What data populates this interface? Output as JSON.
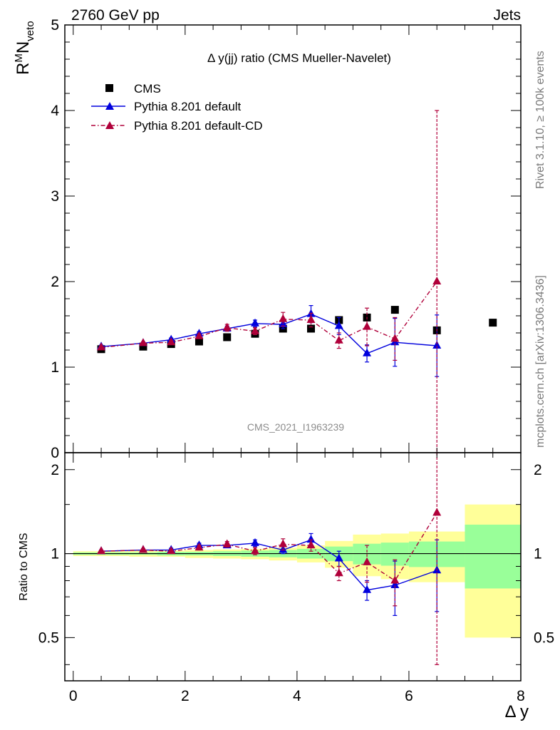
{
  "header": {
    "left": "2760 GeV pp",
    "right": "Jets"
  },
  "side_texts": {
    "rivet": "Rivet 3.1.10, ≥ 100k events",
    "mcplots": "mcplots.cern.ch [arXiv:1306.3436]"
  },
  "chart_data": {
    "type": "scatter",
    "title": "Δ y(jj) ratio (CMS Mueller-Navelet)",
    "watermark": "CMS_2021_I1963239",
    "xlabel": "Δ y",
    "ylabel": "R^M N_veto",
    "ylabel_main": "R",
    "ylabel_sup": "M",
    "ylabel_mid": "N",
    "ylabel_sub": "veto",
    "ratio_ylabel": "Ratio to CMS",
    "xlim": [
      -0.15,
      8.0
    ],
    "ylim": [
      0,
      5
    ],
    "ratio_ylim": [
      0.35,
      2.3
    ],
    "x_ticks": [
      0,
      2,
      4,
      6,
      8
    ],
    "y_ticks": [
      0,
      1,
      2,
      3,
      4,
      5
    ],
    "ratio_ticks": [
      {
        "v": 0.5,
        "label": "0.5"
      },
      {
        "v": 1,
        "label": "1"
      },
      {
        "v": 2,
        "label": "2"
      }
    ],
    "legend": {
      "placement": "top-left"
    },
    "series": [
      {
        "name": "CMS",
        "color": "#000000",
        "marker": "square",
        "line": "none",
        "x": [
          0.5,
          1.25,
          1.75,
          2.25,
          2.75,
          3.25,
          3.75,
          4.25,
          4.75,
          5.25,
          5.75,
          6.5,
          7.5
        ],
        "y": [
          1.21,
          1.24,
          1.27,
          1.3,
          1.35,
          1.39,
          1.45,
          1.45,
          1.55,
          1.58,
          1.67,
          1.43,
          1.52
        ],
        "yerr": [
          0.02,
          0.02,
          0.02,
          0.02,
          0.02,
          0.03,
          0.03,
          0.03,
          0.04,
          0.04,
          0.05,
          0.05,
          0.05
        ]
      },
      {
        "name": "Pythia 8.201 default",
        "color": "#0000dd",
        "marker": "triangle",
        "line": "solid",
        "x": [
          0.5,
          1.25,
          1.75,
          2.25,
          2.75,
          3.25,
          3.75,
          4.25,
          4.75,
          5.25,
          5.75,
          6.5
        ],
        "y": [
          1.24,
          1.28,
          1.32,
          1.39,
          1.45,
          1.51,
          1.5,
          1.62,
          1.48,
          1.16,
          1.29,
          1.25
        ],
        "yerr": [
          0.015,
          0.015,
          0.02,
          0.025,
          0.03,
          0.04,
          0.05,
          0.1,
          0.1,
          0.1,
          0.28,
          0.36
        ]
      },
      {
        "name": "Pythia 8.201 default-CD",
        "color": "#b0003a",
        "marker": "triangle",
        "line": "dashdot",
        "x": [
          0.5,
          1.25,
          1.75,
          2.25,
          2.75,
          3.25,
          3.75,
          4.25,
          4.75,
          5.25,
          5.75,
          6.5
        ],
        "y": [
          1.23,
          1.28,
          1.29,
          1.36,
          1.46,
          1.42,
          1.56,
          1.55,
          1.31,
          1.47,
          1.33,
          2.0
        ],
        "yerr": [
          0.015,
          0.015,
          0.02,
          0.025,
          0.04,
          0.04,
          0.08,
          0.08,
          0.09,
          0.22,
          0.25,
          2.0
        ]
      }
    ],
    "ratio_series": [
      {
        "name": "Pythia 8.201 default",
        "x": [
          0.5,
          1.25,
          1.75,
          2.25,
          2.75,
          3.25,
          3.75,
          4.25,
          4.75,
          5.25,
          5.75,
          6.5
        ],
        "y": [
          1.02,
          1.03,
          1.03,
          1.07,
          1.07,
          1.09,
          1.03,
          1.12,
          0.96,
          0.74,
          0.77,
          0.87
        ],
        "yerr": [
          0.01,
          0.01,
          0.015,
          0.02,
          0.02,
          0.03,
          0.03,
          0.06,
          0.06,
          0.06,
          0.17,
          0.25
        ]
      },
      {
        "name": "Pythia 8.201 default-CD",
        "x": [
          0.5,
          1.25,
          1.75,
          2.25,
          2.75,
          3.25,
          3.75,
          4.25,
          4.75,
          5.25,
          5.75,
          6.5
        ],
        "y": [
          1.02,
          1.03,
          1.02,
          1.05,
          1.08,
          1.02,
          1.08,
          1.07,
          0.85,
          0.93,
          0.8,
          1.4
        ],
        "yerr": [
          0.01,
          0.01,
          0.015,
          0.02,
          0.025,
          0.03,
          0.05,
          0.05,
          0.05,
          0.14,
          0.15,
          1.0
        ]
      }
    ],
    "ratio_bands": [
      {
        "x0": 0.0,
        "x1": 1.0,
        "ylo": 0.98,
        "yhi": 1.02,
        "glo": 0.99,
        "ghi": 1.01
      },
      {
        "x0": 1.0,
        "x1": 1.5,
        "ylo": 0.975,
        "yhi": 1.025,
        "glo": 0.99,
        "ghi": 1.01
      },
      {
        "x0": 1.5,
        "x1": 2.0,
        "ylo": 0.975,
        "yhi": 1.025,
        "glo": 0.985,
        "ghi": 1.015
      },
      {
        "x0": 2.0,
        "x1": 2.5,
        "ylo": 0.965,
        "yhi": 1.03,
        "glo": 0.985,
        "ghi": 1.015
      },
      {
        "x0": 2.5,
        "x1": 3.0,
        "ylo": 0.96,
        "yhi": 1.035,
        "glo": 0.98,
        "ghi": 1.02
      },
      {
        "x0": 3.0,
        "x1": 3.5,
        "ylo": 0.955,
        "yhi": 1.04,
        "glo": 0.975,
        "ghi": 1.025
      },
      {
        "x0": 3.5,
        "x1": 4.0,
        "ylo": 0.945,
        "yhi": 1.05,
        "glo": 0.97,
        "ghi": 1.03
      },
      {
        "x0": 4.0,
        "x1": 4.5,
        "ylo": 0.93,
        "yhi": 1.07,
        "glo": 0.96,
        "ghi": 1.04
      },
      {
        "x0": 4.5,
        "x1": 5.0,
        "ylo": 0.89,
        "yhi": 1.11,
        "glo": 0.94,
        "ghi": 1.06
      },
      {
        "x0": 5.0,
        "x1": 5.5,
        "ylo": 0.83,
        "yhi": 1.17,
        "glo": 0.915,
        "ghi": 1.085
      },
      {
        "x0": 5.5,
        "x1": 6.0,
        "ylo": 0.81,
        "yhi": 1.18,
        "glo": 0.905,
        "ghi": 1.095
      },
      {
        "x0": 6.0,
        "x1": 7.0,
        "ylo": 0.79,
        "yhi": 1.2,
        "glo": 0.895,
        "ghi": 1.105
      },
      {
        "x0": 7.0,
        "x1": 8.0,
        "ylo": 0.5,
        "yhi": 1.5,
        "glo": 0.75,
        "ghi": 1.27
      }
    ],
    "band_colors": {
      "outer": "#ffff99",
      "inner": "#99ff99"
    }
  }
}
